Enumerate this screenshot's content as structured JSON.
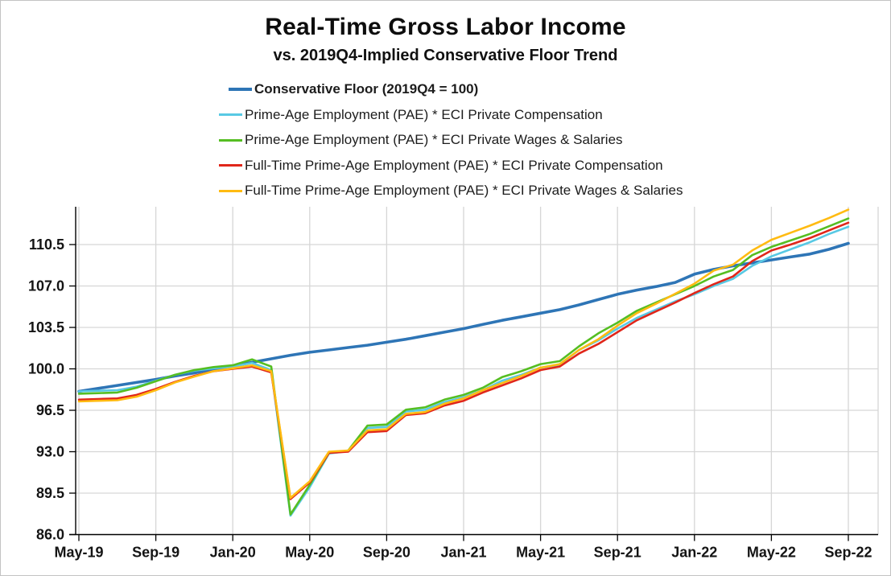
{
  "figure": {
    "title": "Real-Time Gross Labor Income",
    "subtitle": "vs. 2019Q4-Implied Conservative Floor Trend"
  },
  "chart_data": {
    "type": "line",
    "title": "Real-Time Gross Labor Income",
    "subtitle": "vs. 2019Q4-Implied Conservative Floor Trend",
    "xlabel": "",
    "ylabel": "",
    "grid": true,
    "legend_position": "top-left",
    "ylim": [
      86.0,
      114.0
    ],
    "y_ticks": [
      86.0,
      89.5,
      93.0,
      96.5,
      100.0,
      103.5,
      107.0,
      110.5
    ],
    "y_tick_labels": [
      "86.0",
      "89.5",
      "93.0",
      "96.5",
      "100.0",
      "103.5",
      "107.0",
      "110.5"
    ],
    "x_tick_labels": [
      "May-19",
      "Sep-19",
      "Jan-20",
      "May-20",
      "Sep-20",
      "Jan-21",
      "May-21",
      "Sep-21",
      "Jan-22",
      "May-22",
      "Sep-22"
    ],
    "x_tick_every": 4,
    "months": [
      "May-19",
      "Jun-19",
      "Jul-19",
      "Aug-19",
      "Sep-19",
      "Oct-19",
      "Nov-19",
      "Dec-19",
      "Jan-20",
      "Feb-20",
      "Mar-20",
      "Apr-20",
      "May-20",
      "Jun-20",
      "Jul-20",
      "Aug-20",
      "Sep-20",
      "Oct-20",
      "Nov-20",
      "Dec-20",
      "Jan-21",
      "Feb-21",
      "Mar-21",
      "Apr-21",
      "May-21",
      "Jun-21",
      "Jul-21",
      "Aug-21",
      "Sep-21",
      "Oct-21",
      "Nov-21",
      "Dec-21",
      "Jan-22",
      "Feb-22",
      "Mar-22",
      "Apr-22",
      "May-22",
      "Jun-22",
      "Jul-22",
      "Aug-22",
      "Sep-22"
    ],
    "series": [
      {
        "name": "Conservative Floor (2019Q4 = 100)",
        "color": "#2E75B6",
        "line_width": 3.6,
        "bold_legend": true,
        "values": [
          98.1,
          98.35,
          98.6,
          98.85,
          99.1,
          99.4,
          99.65,
          99.95,
          100.25,
          100.55,
          100.85,
          101.15,
          101.4,
          101.6,
          101.8,
          102.0,
          102.25,
          102.5,
          102.8,
          103.1,
          103.4,
          103.75,
          104.1,
          104.4,
          104.7,
          105.0,
          105.4,
          105.85,
          106.3,
          106.65,
          106.95,
          107.3,
          108.0,
          108.4,
          108.7,
          108.95,
          109.2,
          109.45,
          109.7,
          110.1,
          110.6
        ]
      },
      {
        "name": "Prime-Age Employment (PAE) * ECI Private Compensation",
        "color": "#58C9E4",
        "line_width": 2.6,
        "bold_legend": false,
        "values": [
          98.1,
          98.15,
          98.2,
          98.5,
          99.0,
          99.5,
          99.85,
          100.05,
          100.2,
          100.5,
          99.9,
          87.6,
          90.0,
          92.85,
          93.05,
          95.0,
          95.1,
          96.4,
          96.55,
          97.2,
          97.6,
          98.2,
          99.0,
          99.5,
          100.1,
          100.35,
          101.6,
          102.4,
          103.4,
          104.3,
          105.0,
          105.7,
          106.3,
          107.0,
          107.6,
          108.7,
          109.5,
          110.1,
          110.7,
          111.4,
          112.0
        ]
      },
      {
        "name": "Prime-Age Employment (PAE) * ECI Private Wages & Salaries",
        "color": "#55BE22",
        "line_width": 2.6,
        "bold_legend": false,
        "values": [
          97.9,
          97.95,
          98.0,
          98.4,
          98.95,
          99.5,
          99.9,
          100.15,
          100.3,
          100.8,
          100.2,
          87.7,
          90.2,
          92.9,
          93.1,
          95.2,
          95.3,
          96.55,
          96.75,
          97.4,
          97.8,
          98.4,
          99.3,
          99.8,
          100.4,
          100.65,
          101.9,
          103.0,
          103.9,
          104.9,
          105.6,
          106.3,
          107.0,
          107.8,
          108.35,
          109.6,
          110.3,
          110.85,
          111.4,
          112.05,
          112.7
        ]
      },
      {
        "name": "Full-Time Prime-Age Employment (PAE) * ECI Private Compensation",
        "color": "#E0261A",
        "line_width": 2.6,
        "bold_legend": false,
        "values": [
          97.4,
          97.45,
          97.5,
          97.8,
          98.3,
          98.9,
          99.4,
          99.8,
          100.0,
          100.2,
          99.7,
          89.0,
          90.4,
          92.9,
          93.0,
          94.65,
          94.75,
          96.1,
          96.25,
          96.9,
          97.3,
          98.0,
          98.6,
          99.2,
          99.9,
          100.2,
          101.3,
          102.1,
          103.1,
          104.1,
          104.85,
          105.6,
          106.4,
          107.15,
          107.8,
          109.1,
          110.0,
          110.5,
          111.05,
          111.7,
          112.35
        ]
      },
      {
        "name": "Full-Time Prime-Age Employment (PAE) * ECI Private Wages & Salaries",
        "color": "#FFBB12",
        "line_width": 2.6,
        "bold_legend": false,
        "values": [
          97.25,
          97.3,
          97.35,
          97.65,
          98.2,
          98.85,
          99.35,
          99.8,
          100.05,
          100.3,
          99.8,
          89.1,
          90.5,
          93.0,
          93.1,
          94.8,
          94.9,
          96.2,
          96.35,
          97.05,
          97.5,
          98.2,
          98.8,
          99.4,
          100.1,
          100.4,
          101.6,
          102.5,
          103.65,
          104.7,
          105.5,
          106.35,
          107.2,
          108.3,
          108.8,
          110.0,
          110.9,
          111.5,
          112.1,
          112.75,
          113.45
        ]
      }
    ],
    "colors": {
      "grid": "#d6d6d6",
      "axis": "#000000",
      "tick_label": "#141414"
    }
  }
}
